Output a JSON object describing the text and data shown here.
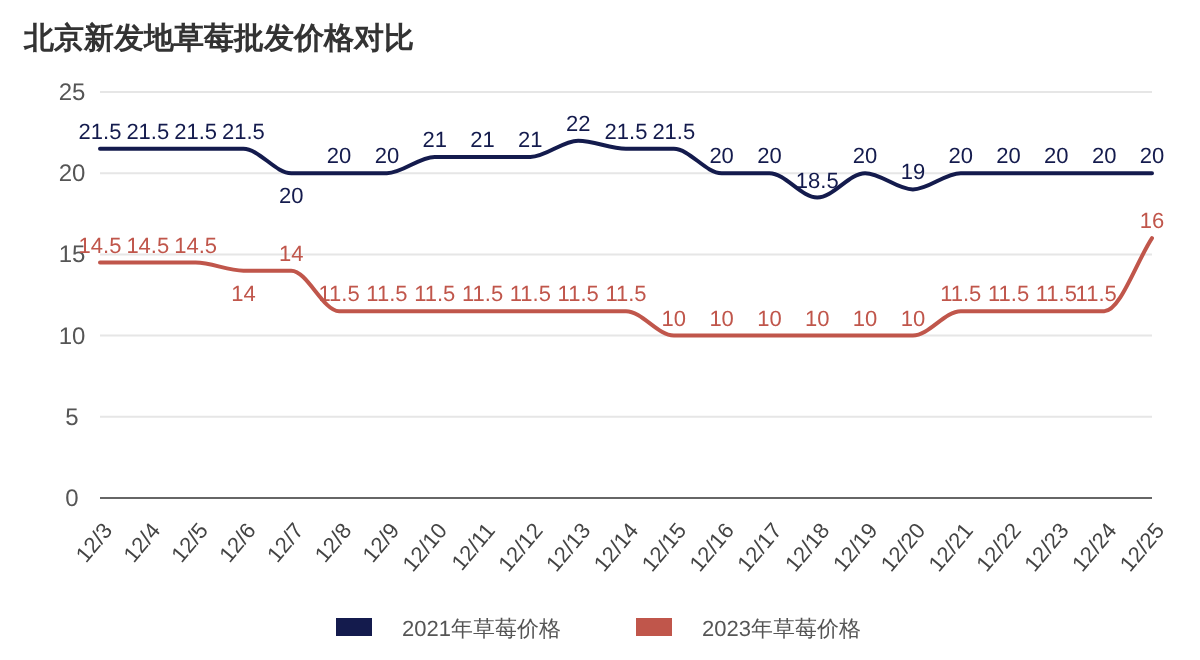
{
  "chart_data": {
    "type": "line",
    "title": "北京新发地草莓批发价格对比",
    "categories": [
      "12/3",
      "12/4",
      "12/5",
      "12/6",
      "12/7",
      "12/8",
      "12/9",
      "12/10",
      "12/11",
      "12/12",
      "12/13",
      "12/14",
      "12/15",
      "12/16",
      "12/17",
      "12/18",
      "12/19",
      "12/20",
      "12/21",
      "12/22",
      "12/23",
      "12/24",
      "12/25"
    ],
    "series": [
      {
        "name": "2021年草莓价格",
        "color": "#141b4d",
        "values": [
          21.5,
          21.5,
          21.5,
          21.5,
          20,
          20,
          20,
          21,
          21,
          21,
          22,
          21.5,
          21.5,
          20,
          20,
          18.5,
          20,
          19,
          20,
          20,
          20,
          20,
          20
        ]
      },
      {
        "name": "2023年草莓价格",
        "color": "#c0564b",
        "values": [
          14.5,
          14.5,
          14.5,
          14,
          14,
          11.5,
          11.5,
          11.5,
          11.5,
          11.5,
          11.5,
          11.5,
          10,
          10,
          10,
          10,
          10,
          10,
          11.5,
          11.5,
          11.5,
          11.5,
          16
        ]
      }
    ],
    "ylim": [
      0,
      25
    ],
    "yticks": [
      0,
      5,
      10,
      15,
      20,
      25
    ],
    "grid": "y",
    "legend": "bottom",
    "data_labels": true,
    "marker": "none",
    "line_style": "solid"
  }
}
